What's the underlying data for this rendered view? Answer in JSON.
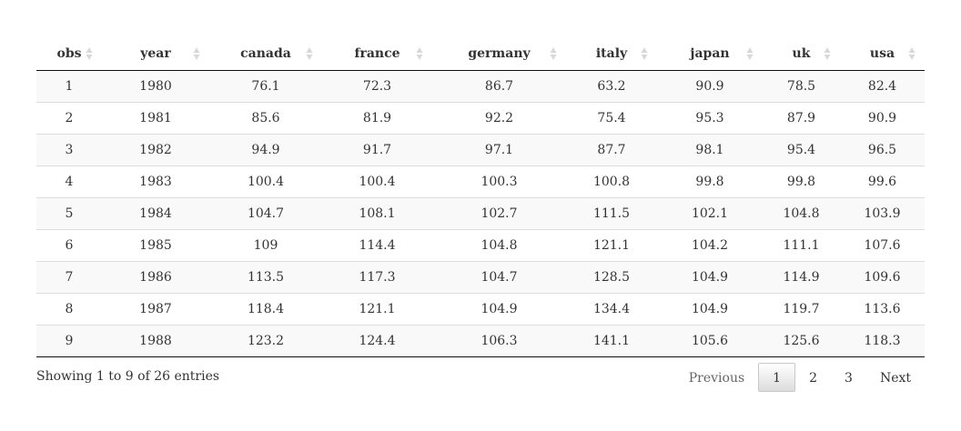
{
  "table": {
    "columns": [
      "obs",
      "year",
      "canada",
      "france",
      "germany",
      "italy",
      "japan",
      "uk",
      "usa"
    ],
    "rows": [
      [
        "1",
        "1980",
        "76.1",
        "72.3",
        "86.7",
        "63.2",
        "90.9",
        "78.5",
        "82.4"
      ],
      [
        "2",
        "1981",
        "85.6",
        "81.9",
        "92.2",
        "75.4",
        "95.3",
        "87.9",
        "90.9"
      ],
      [
        "3",
        "1982",
        "94.9",
        "91.7",
        "97.1",
        "87.7",
        "98.1",
        "95.4",
        "96.5"
      ],
      [
        "4",
        "1983",
        "100.4",
        "100.4",
        "100.3",
        "100.8",
        "99.8",
        "99.8",
        "99.6"
      ],
      [
        "5",
        "1984",
        "104.7",
        "108.1",
        "102.7",
        "111.5",
        "102.1",
        "104.8",
        "103.9"
      ],
      [
        "6",
        "1985",
        "109",
        "114.4",
        "104.8",
        "121.1",
        "104.2",
        "111.1",
        "107.6"
      ],
      [
        "7",
        "1986",
        "113.5",
        "117.3",
        "104.7",
        "128.5",
        "104.9",
        "114.9",
        "109.6"
      ],
      [
        "8",
        "1987",
        "118.4",
        "121.1",
        "104.9",
        "134.4",
        "104.9",
        "119.7",
        "113.6"
      ],
      [
        "9",
        "1988",
        "123.2",
        "124.4",
        "106.3",
        "141.1",
        "105.6",
        "125.6",
        "118.3"
      ]
    ]
  },
  "info": "Showing 1 to 9 of 26 entries",
  "pagination": {
    "previous": "Previous",
    "pages": [
      "1",
      "2",
      "3"
    ],
    "current_page": "1",
    "next": "Next"
  },
  "icons": {
    "sort": "sort-both-icon"
  },
  "colors": {
    "striped_row": "#f9f9f9",
    "sort_icon": "#d9d9d9"
  }
}
